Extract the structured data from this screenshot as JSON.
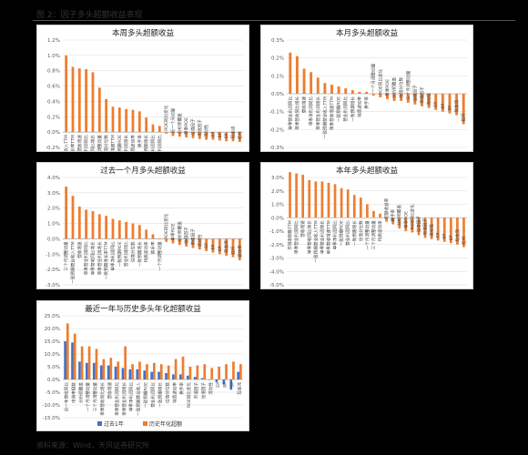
{
  "page": {
    "figure_title": "图 2：因子多头超额收益表现",
    "source": "资料来源：Wind，天风证券研究所"
  },
  "colors": {
    "orange": "#ED7D31",
    "blue": "#4472C4",
    "grid": "#D9D9D9"
  },
  "chart_data": [
    {
      "id": "week",
      "type": "bar",
      "title": "本周多头超额收益",
      "ylim": [
        -0.2,
        1.2
      ],
      "yticks": [
        -0.2,
        0.0,
        0.2,
        0.4,
        0.6,
        0.8,
        1.0,
        1.2
      ],
      "tick_format": "pct1",
      "categories": [
        "一致预期营业收入TTM",
        "一致预期增长率TTM",
        "营收增速",
        "单季营业利润同比",
        "单季营收同比增长",
        "三个月调整动量",
        "估值分位数",
        "单季营收增速TTM",
        "一致预期ROE",
        "单季营业利润增长",
        "特质波动率",
        "换手率",
        "一致预期增长",
        "营业利润同比",
        "单季净利润同比",
        "ROE同比变化",
        "近一个月动量",
        "分析师覆盖",
        "单季ROE",
        "估值因子",
        "市值因子",
        "流动性",
        "EP",
        "BP",
        "SP",
        "现金流",
        "杠杆"
      ],
      "values": [
        1.0,
        0.85,
        0.83,
        0.82,
        0.78,
        0.58,
        0.43,
        0.33,
        0.32,
        0.3,
        0.29,
        0.27,
        0.19,
        0.1,
        0.08,
        -0.02,
        -0.05,
        -0.06,
        -0.07,
        -0.08,
        -0.09,
        -0.1,
        -0.1,
        -0.11,
        -0.12,
        -0.12,
        -0.13
      ]
    },
    {
      "id": "month",
      "type": "bar",
      "title": "本月多头超额收益",
      "ylim": [
        -0.3,
        0.3
      ],
      "yticks": [
        -0.3,
        -0.2,
        -0.1,
        0.0,
        0.1,
        0.2,
        0.3
      ],
      "tick_format": "pct1",
      "categories": [
        "单季营业利润同比",
        "单季营收同比增长",
        "营收增速",
        "单季净利润同比",
        "单季营业利润增长",
        "一致预期营业收入TTM",
        "单季营收增速TTM",
        "一致预期ROE",
        "营业利润同比",
        "一致预期增长",
        "特质波动率",
        "换手率",
        "一个月调整动量",
        "ROE同比变化",
        "单季ROE",
        "分析师覆盖",
        "估值分位数",
        "三个月调整动量",
        "估值因子",
        "市值因子",
        "流动性",
        "EP",
        "BP",
        "SP",
        "现金流",
        "杠杆"
      ],
      "values": [
        0.23,
        0.21,
        0.14,
        0.12,
        0.09,
        0.06,
        0.05,
        0.04,
        0.03,
        0.02,
        0.01,
        0.01,
        -0.01,
        -0.02,
        -0.03,
        -0.04,
        -0.04,
        -0.05,
        -0.06,
        -0.07,
        -0.08,
        -0.09,
        -0.1,
        -0.11,
        -0.12,
        -0.17
      ]
    },
    {
      "id": "past-month",
      "type": "bar",
      "title": "过去一个月多头超额收益",
      "ylim": [
        -3.0,
        4.0
      ],
      "yticks": [
        -3.0,
        -2.0,
        -1.0,
        0.0,
        1.0,
        2.0,
        3.0,
        4.0
      ],
      "tick_format": "pct1",
      "categories": [
        "三个月调整动量",
        "一致预期营业收入TTM",
        "营收增速",
        "单季营业利润同比",
        "单季营收同比增长",
        "单季营业利润增长",
        "一致预期增长率TTM",
        "单季净利润同比",
        "一致预期ROE",
        "营业利润同比",
        "估值分位数",
        "一致预期增长",
        "特质波动率",
        "换手率",
        "一个月调整动量",
        "ROE同比变化",
        "单季ROE",
        "分析师覆盖",
        "估值因子",
        "市值因子",
        "流动性",
        "EP",
        "BP",
        "SP",
        "现金流",
        "杠杆",
        "波动率"
      ],
      "values": [
        3.4,
        2.8,
        2.1,
        1.9,
        1.8,
        1.6,
        1.5,
        1.3,
        1.2,
        1.1,
        1.0,
        0.9,
        0.6,
        0.3,
        0.0,
        -0.2,
        -0.3,
        -0.4,
        -0.5,
        -0.6,
        -0.7,
        -0.8,
        -0.9,
        -1.0,
        -1.1,
        -1.2,
        -1.4
      ]
    },
    {
      "id": "year",
      "type": "bar",
      "title": "本年多头超额收益",
      "ylim": [
        -5.0,
        3.0
      ],
      "yticks": [
        -5.0,
        -4.0,
        -3.0,
        -2.0,
        -1.0,
        0.0,
        1.0,
        2.0,
        3.0
      ],
      "tick_format": "pct1",
      "categories": [
        "市销率倒数TTM",
        "单季营业利润同比",
        "营收增速",
        "单季营收同比增长",
        "一致预期营业收入TTM",
        "单季营业利润增长",
        "单季营收增速TTM",
        "单季净利润同比",
        "一致预期ROE",
        "营业利润同比",
        "一致预期增长",
        "估值分位数",
        "一个月调整动量",
        "三个月调整动量",
        "特质波动率",
        "超额收益率",
        "换手率",
        "分析师覆盖",
        "单季ROE",
        "ROE同比变化",
        "估值因子",
        "市值因子",
        "流动性",
        "EP",
        "BP",
        "SP",
        "现金流",
        "杠杆"
      ],
      "values": [
        3.4,
        3.3,
        3.2,
        2.8,
        2.7,
        2.7,
        2.6,
        2.5,
        2.2,
        2.1,
        1.7,
        1.5,
        1.0,
        0.5,
        0.3,
        -0.3,
        -0.5,
        -0.8,
        -1.0,
        -1.1,
        -1.3,
        -1.5,
        -1.6,
        -1.7,
        -1.8,
        -1.9,
        -2.0,
        -2.2
      ]
    },
    {
      "id": "annualized",
      "type": "bar",
      "title": "最近一年与历史多头年化超额收益",
      "ylim": [
        -15.0,
        25.0
      ],
      "yticks": [
        -15.0,
        -10.0,
        -5.0,
        0.0,
        5.0,
        10.0,
        15.0,
        20.0,
        25.0
      ],
      "tick_format": "pct1",
      "categories": [
        "近一年营收同比",
        "市销率倒数",
        "分析师覆盖",
        "一个月调整动量",
        "三个月调整动量",
        "单季营收同比增长",
        "营收增速",
        "单季营业利润同比",
        "单季营业利润增长",
        "单季净利润同比",
        "一致预期营业收入",
        "一致预期ROE",
        "营业利润同比",
        "一致预期增长",
        "估值分位数",
        "特质波动率",
        "换手率",
        "ROE同比变化",
        "市值因子",
        "估值因子",
        "流动性",
        "EP",
        "BP",
        "SP",
        "现金流"
      ],
      "series": [
        {
          "name": "过去1年",
          "values": [
            15.0,
            14.5,
            7.0,
            6.5,
            6.5,
            5.5,
            5.5,
            5.0,
            4.5,
            4.0,
            4.0,
            3.5,
            3.0,
            3.0,
            2.5,
            2.0,
            2.0,
            1.5,
            1.0,
            0.5,
            0.0,
            -1.0,
            -2.0,
            -4.0,
            3.0
          ]
        },
        {
          "name": "历史年化超额",
          "values": [
            22.0,
            18.0,
            13.0,
            13.0,
            12.0,
            8.0,
            8.5,
            7.0,
            13.0,
            6.0,
            7.0,
            6.0,
            6.5,
            6.0,
            5.5,
            8.0,
            9.0,
            5.0,
            5.5,
            6.0,
            4.5,
            5.0,
            6.0,
            7.0,
            6.0
          ]
        }
      ],
      "legend_position": "bottom"
    }
  ]
}
